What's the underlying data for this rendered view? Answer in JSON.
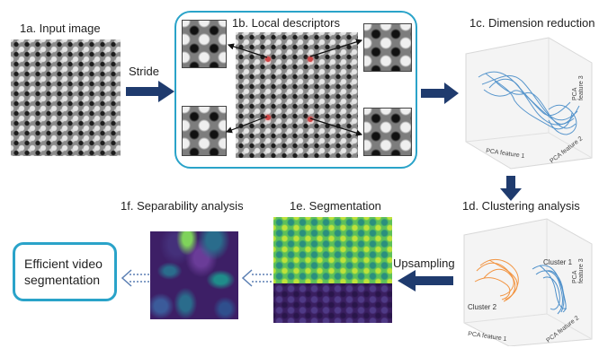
{
  "labels": {
    "input_image": "1a. Input image",
    "local_descriptors": "1b. Local descriptors",
    "dimension_reduction": "1c. Dimension reduction",
    "clustering_analysis": "1d. Clustering analysis",
    "segmentation": "1e. Segmentation",
    "separability_analysis": "1f. Separability analysis"
  },
  "arrows": {
    "stride": "Stride",
    "upsampling": "Upsampling"
  },
  "output_box": {
    "line1": "Efficient video",
    "line2": "segmentation"
  },
  "plot_1c": {
    "axis_x": "PCA feature 1",
    "axis_y": "PCA feature 2",
    "axis_z": "PCA feature 3"
  },
  "plot_1d": {
    "axis_x": "PCA feature 1",
    "axis_y": "PCA feature 2",
    "axis_z": "PCA feature 3",
    "cluster_1": "Cluster 1",
    "cluster_2": "Cluster 2"
  },
  "colors": {
    "arrow_navy": "#1f3b6e",
    "box_outline": "#2aa3c9",
    "cluster_blue": "#3d86c6",
    "cluster_orange": "#f28a2e"
  }
}
